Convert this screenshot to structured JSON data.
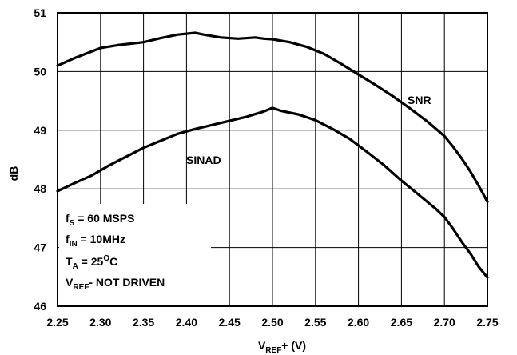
{
  "chart_data": {
    "type": "line",
    "title": "",
    "xlabel": {
      "prefix": "V",
      "subscript": "REF",
      "suffix": "+ (V)"
    },
    "ylabel": "dB",
    "xlim": [
      2.25,
      2.75
    ],
    "ylim": [
      46,
      51
    ],
    "x_ticks": [
      "2.25",
      "2.30",
      "2.35",
      "2.40",
      "2.45",
      "2.50",
      "2.55",
      "2.60",
      "2.65",
      "2.70",
      "2.75"
    ],
    "y_ticks": [
      "46",
      "47",
      "48",
      "49",
      "50",
      "51"
    ],
    "grid": true,
    "series": [
      {
        "name": "SNR",
        "color": "#000000",
        "x": [
          2.25,
          2.27,
          2.3,
          2.32,
          2.35,
          2.37,
          2.39,
          2.41,
          2.42,
          2.44,
          2.46,
          2.48,
          2.49,
          2.5,
          2.52,
          2.54,
          2.56,
          2.58,
          2.6,
          2.62,
          2.64,
          2.66,
          2.68,
          2.7,
          2.71,
          2.72,
          2.73,
          2.74,
          2.75
        ],
        "y": [
          50.1,
          50.23,
          50.4,
          50.45,
          50.5,
          50.57,
          50.63,
          50.66,
          50.63,
          50.58,
          50.56,
          50.58,
          50.56,
          50.55,
          50.5,
          50.42,
          50.3,
          50.13,
          49.95,
          49.77,
          49.58,
          49.37,
          49.15,
          48.9,
          48.72,
          48.52,
          48.3,
          48.05,
          47.78
        ]
      },
      {
        "name": "SINAD",
        "color": "#000000",
        "x": [
          2.25,
          2.27,
          2.29,
          2.31,
          2.33,
          2.35,
          2.37,
          2.39,
          2.41,
          2.43,
          2.45,
          2.47,
          2.49,
          2.5,
          2.51,
          2.53,
          2.55,
          2.57,
          2.59,
          2.61,
          2.63,
          2.65,
          2.67,
          2.69,
          2.7,
          2.71,
          2.72,
          2.73,
          2.74,
          2.75
        ],
        "y": [
          47.96,
          48.1,
          48.23,
          48.4,
          48.55,
          48.7,
          48.82,
          48.94,
          49.02,
          49.09,
          49.16,
          49.23,
          49.32,
          49.38,
          49.33,
          49.27,
          49.17,
          49.02,
          48.85,
          48.63,
          48.4,
          48.14,
          47.9,
          47.66,
          47.52,
          47.32,
          47.1,
          46.9,
          46.67,
          46.49
        ]
      }
    ],
    "annotations": {
      "snr_label": "SNR",
      "sinad_label": "SINAD",
      "conditions": [
        {
          "main": "f",
          "sub": "S",
          "rest": " = 60 MSPS",
          "sup": "",
          "after": ""
        },
        {
          "main": "f",
          "sub": "IN",
          "rest": " = 10MHz",
          "sup": "",
          "after": ""
        },
        {
          "main": "T",
          "sub": "A",
          "rest": " = 25",
          "sup": "O",
          "after": "C"
        },
        {
          "main": "V",
          "sub": "REF",
          "rest": "- NOT DRIVEN",
          "sup": "",
          "after": ""
        }
      ]
    }
  }
}
